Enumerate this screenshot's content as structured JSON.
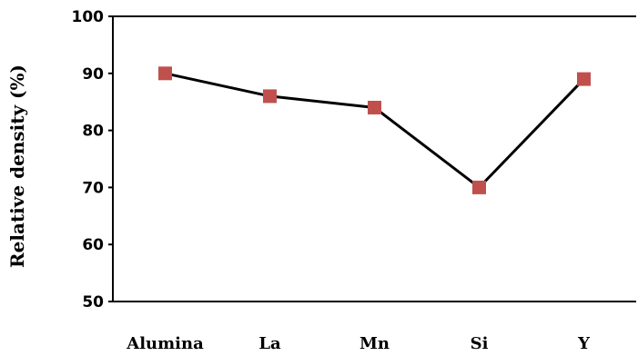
{
  "chart_data": {
    "type": "line",
    "categories": [
      "Alumina",
      "La",
      "Mn",
      "Si",
      "Y"
    ],
    "values": [
      90,
      86,
      84,
      70,
      89
    ],
    "ylabel": "Relative density (%)",
    "xlabel": "",
    "ylim": [
      50,
      100
    ],
    "yticks": [
      "100",
      "90",
      "80",
      "70",
      "60",
      "50"
    ],
    "grid": false,
    "legend": "none",
    "colors": {
      "line": "#000000",
      "marker": "#c0504d",
      "axis": "#000000"
    }
  }
}
